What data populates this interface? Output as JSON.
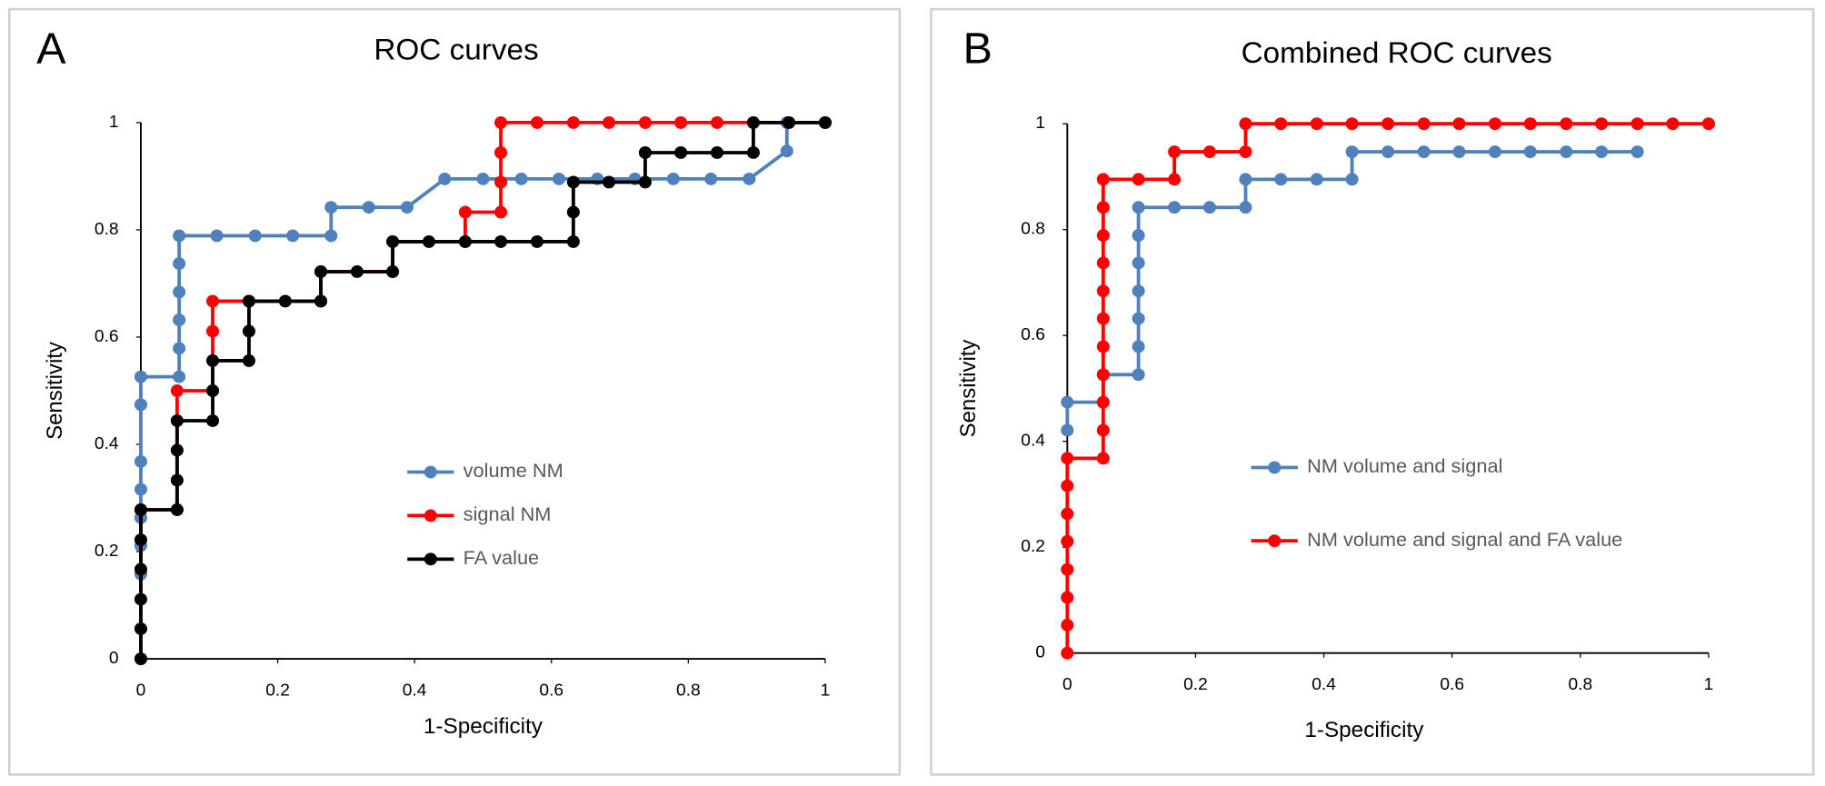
{
  "chart_data": [
    {
      "type": "line",
      "panel_label": "A",
      "title": "ROC curves",
      "xlabel": "1-Specificity",
      "ylabel": "Sensitivity",
      "xlim": [
        0,
        1
      ],
      "ylim": [
        0,
        1
      ],
      "xticks": [
        0,
        0.2,
        0.4,
        0.6,
        0.8,
        1
      ],
      "yticks": [
        0,
        0.2,
        0.4,
        0.6,
        0.8,
        1
      ],
      "series": [
        {
          "name": "volume NM",
          "color": "#4f81bd",
          "x": [
            0,
            0,
            0,
            0,
            0,
            0,
            0,
            0.056,
            0.056,
            0.056,
            0.056,
            0.056,
            0.056,
            0.111,
            0.167,
            0.222,
            0.278,
            0.278,
            0.333,
            0.389,
            0.444,
            0.5,
            0.556,
            0.611,
            0.667,
            0.722,
            0.778,
            0.833,
            0.889,
            0.944,
            0.944,
            1
          ],
          "values": [
            0.158,
            0.211,
            0.263,
            0.316,
            0.368,
            0.474,
            0.526,
            0.526,
            0.579,
            0.632,
            0.684,
            0.737,
            0.789,
            0.789,
            0.789,
            0.789,
            0.789,
            0.842,
            0.842,
            0.842,
            0.895,
            0.895,
            0.895,
            0.895,
            0.895,
            0.895,
            0.895,
            0.895,
            0.895,
            0.947,
            1,
            1
          ]
        },
        {
          "name": "signal NM",
          "color": "#ff0000",
          "x": [
            0,
            0,
            0.053,
            0.053,
            0.105,
            0.105,
            0.105,
            0.158,
            0.263,
            0.263,
            0.368,
            0.368,
            0.474,
            0.474,
            0.526,
            0.526,
            0.526,
            0.526,
            0.579,
            0.632,
            0.684,
            0.737,
            0.789,
            0.842,
            0.895,
            0.947,
            1
          ],
          "values": [
            0,
            0.278,
            0.278,
            0.5,
            0.5,
            0.611,
            0.667,
            0.667,
            0.667,
            0.722,
            0.722,
            0.778,
            0.778,
            0.833,
            0.833,
            0.889,
            0.944,
            1,
            1,
            1,
            1,
            1,
            1,
            1,
            1,
            1,
            1
          ]
        },
        {
          "name": "FA value",
          "color": "#000000",
          "x": [
            0,
            0,
            0,
            0,
            0,
            0,
            0.053,
            0.053,
            0.053,
            0.053,
            0.105,
            0.105,
            0.105,
            0.158,
            0.158,
            0.158,
            0.211,
            0.263,
            0.263,
            0.316,
            0.368,
            0.368,
            0.421,
            0.474,
            0.526,
            0.579,
            0.632,
            0.632,
            0.632,
            0.684,
            0.737,
            0.737,
            0.789,
            0.842,
            0.895,
            0.895,
            0.947,
            1
          ],
          "values": [
            0,
            0.056,
            0.111,
            0.167,
            0.222,
            0.278,
            0.278,
            0.333,
            0.389,
            0.444,
            0.444,
            0.5,
            0.556,
            0.556,
            0.611,
            0.667,
            0.667,
            0.667,
            0.722,
            0.722,
            0.722,
            0.778,
            0.778,
            0.778,
            0.778,
            0.778,
            0.778,
            0.833,
            0.889,
            0.889,
            0.889,
            0.944,
            0.944,
            0.944,
            0.944,
            1,
            1,
            1
          ]
        }
      ]
    },
    {
      "type": "line",
      "panel_label": "B",
      "title": "Combined ROC curves",
      "xlabel": "1-Specificity",
      "ylabel": "Sensitivity",
      "xlim": [
        0,
        1
      ],
      "ylim": [
        0,
        1
      ],
      "xticks": [
        0,
        0.2,
        0.4,
        0.6,
        0.8,
        1
      ],
      "yticks": [
        0,
        0.2,
        0.4,
        0.6,
        0.8,
        1
      ],
      "series": [
        {
          "name": "NM volume and signal",
          "color": "#4f81bd",
          "x": [
            0,
            0,
            0.056,
            0.056,
            0.111,
            0.111,
            0.111,
            0.111,
            0.111,
            0.111,
            0.111,
            0.167,
            0.222,
            0.278,
            0.278,
            0.333,
            0.389,
            0.444,
            0.444,
            0.5,
            0.556,
            0.611,
            0.667,
            0.722,
            0.778,
            0.833,
            0.889
          ],
          "values": [
            0.421,
            0.474,
            0.474,
            0.526,
            0.526,
            0.579,
            0.632,
            0.684,
            0.737,
            0.789,
            0.842,
            0.842,
            0.842,
            0.842,
            0.895,
            0.895,
            0.895,
            0.895,
            0.947,
            0.947,
            0.947,
            0.947,
            0.947,
            0.947,
            0.947,
            0.947,
            0.947
          ]
        },
        {
          "name": "NM volume and signal and FA value",
          "color": "#ff0000",
          "x": [
            0,
            0,
            0,
            0,
            0,
            0,
            0,
            0,
            0.056,
            0.056,
            0.056,
            0.056,
            0.056,
            0.056,
            0.056,
            0.056,
            0.056,
            0.056,
            0.056,
            0.111,
            0.167,
            0.167,
            0.222,
            0.278,
            0.278,
            0.333,
            0.389,
            0.444,
            0.5,
            0.556,
            0.611,
            0.667,
            0.722,
            0.778,
            0.833,
            0.889,
            0.944,
            1
          ],
          "values": [
            0,
            0.053,
            0.105,
            0.158,
            0.211,
            0.263,
            0.316,
            0.368,
            0.368,
            0.421,
            0.474,
            0.526,
            0.579,
            0.632,
            0.684,
            0.737,
            0.789,
            0.842,
            0.895,
            0.895,
            0.895,
            0.947,
            0.947,
            0.947,
            1,
            1,
            1,
            1,
            1,
            1,
            1,
            1,
            1,
            1,
            1,
            1,
            1,
            1
          ]
        }
      ]
    }
  ]
}
